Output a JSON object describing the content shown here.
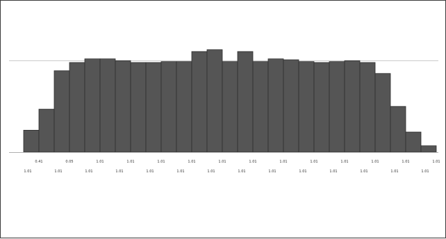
{
  "chart_data": {
    "type": "bar",
    "title": "",
    "xlabel": "",
    "ylabel": "",
    "grid": false,
    "legend": "none",
    "reference_line": 100,
    "ylim": [
      0,
      120
    ],
    "bar_color": "#555555",
    "bar_edge_color": "#2e2e2e",
    "reference_line_color": "#c8c8c8",
    "axis_color": "#b0b0b0",
    "values": [
      24,
      47,
      89,
      98,
      102,
      102,
      100,
      98,
      98,
      99,
      99,
      110,
      112,
      99,
      110,
      99,
      102,
      101,
      99,
      98,
      99,
      100,
      98,
      86,
      50,
      22,
      7
    ],
    "tick_labels_upper": [
      "0.41",
      "0.05",
      "1.01",
      "1.01",
      "1.01",
      "1.01",
      "1.01",
      "1.01",
      "1.01",
      "1.01",
      "1.01",
      "1.01",
      "1.01",
      "1.01",
      "1.01"
    ],
    "tick_labels_lower": [
      "1.01",
      "1.01",
      "1.01",
      "1.01",
      "1.01",
      "1.01",
      "1.01",
      "1.01",
      "1.01",
      "1.01",
      "1.01",
      "1.01",
      "1.01",
      "1.01",
      "1.01"
    ]
  }
}
